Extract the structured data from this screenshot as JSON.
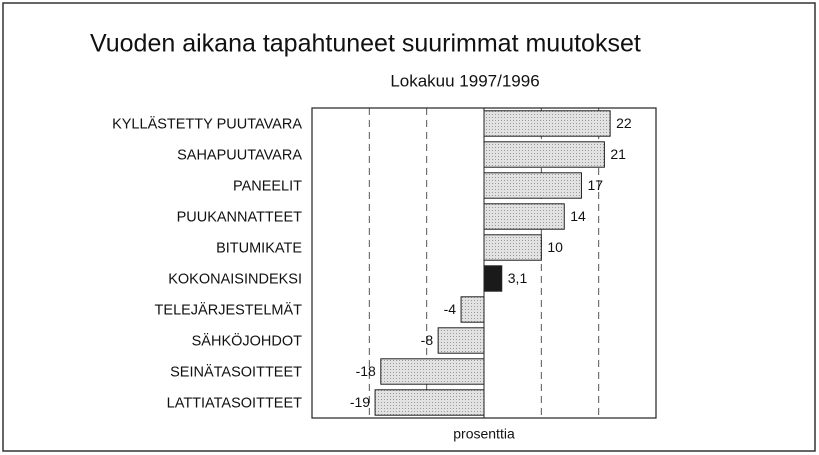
{
  "chart_data": {
    "type": "hbar",
    "title": "Vuoden aikana tapahtuneet suurimmat muutokset",
    "subtitle": "Lokakuu 1997/1996",
    "x_label": "prosenttia",
    "categories": [
      "KYLLÄSTETTY PUUTAVARA",
      "SAHAPUUTAVARA",
      "PANEELIT",
      "PUUKANNATTEET",
      "BITUMIKATE",
      "KOKONAISINDEKSI",
      "TELEJÄRJESTELMÄT",
      "SÄHKÖJOHDOT",
      "SEINÄTASOITTEET",
      "LATTIATASOITTEET"
    ],
    "values": [
      22,
      21,
      17,
      14,
      10,
      3.1,
      -4,
      -8,
      -18,
      -19
    ],
    "value_labels": [
      "22",
      "21",
      "17",
      "14",
      "10",
      "3,1",
      "-4",
      "-8",
      "-18",
      "-19"
    ],
    "colors": [
      "#d8d8d8",
      "#d8d8d8",
      "#d8d8d8",
      "#d8d8d8",
      "#d8d8d8",
      "#1a1a1a",
      "#d8d8d8",
      "#d8d8d8",
      "#d8d8d8",
      "#d8d8d8"
    ],
    "xlim": [
      -30,
      30
    ],
    "xticks": [
      -20,
      -10,
      10,
      20
    ],
    "grid": true
  }
}
